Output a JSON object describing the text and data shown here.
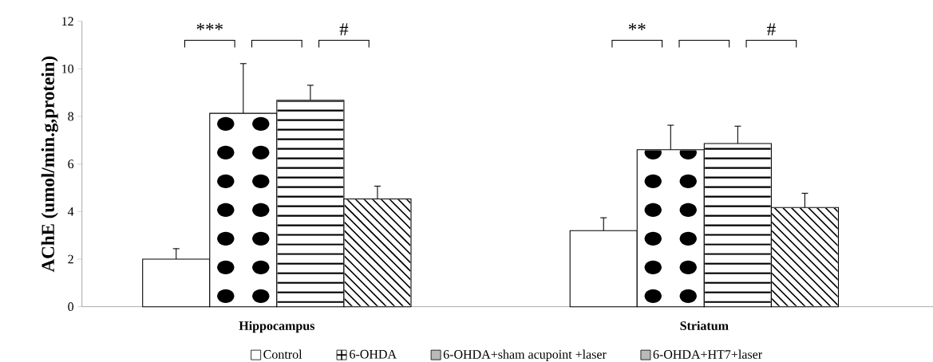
{
  "chart_data": {
    "type": "bar",
    "ylabel": "AChE (umol/min.g,protein)",
    "categories": [
      "Hippocampus",
      "Striatum"
    ],
    "series": [
      {
        "name": "Control",
        "color": "#ffffff",
        "values": [
          2.0,
          3.2
        ],
        "errors": [
          [
            2.0,
            2.44
          ],
          [
            3.2,
            3.74
          ]
        ]
      },
      {
        "name": "6-OHDA",
        "color": "#ffffff",
        "values": [
          8.13,
          6.6
        ],
        "errors": [
          [
            8.13,
            10.22
          ],
          [
            6.6,
            7.63
          ]
        ]
      },
      {
        "name": "6-OHDA+sham acupoint +laser",
        "color": "#ffffff",
        "values": [
          8.68,
          6.86
        ],
        "errors": [
          [
            8.68,
            9.31
          ],
          [
            6.86,
            7.59
          ]
        ]
      },
      {
        "name": "6-OHDA+HT7+laser",
        "color": "#ffffff",
        "values": [
          4.53,
          4.17
        ],
        "errors": [
          [
            4.53,
            5.07
          ],
          [
            4.17,
            4.77
          ]
        ]
      }
    ],
    "ylim": [
      0,
      12
    ],
    "yticks": [
      0,
      2,
      4,
      6,
      8,
      10,
      12
    ],
    "grid": false,
    "legend": "bottom",
    "annotations": [
      "***",
      "#",
      "**",
      "#"
    ]
  }
}
